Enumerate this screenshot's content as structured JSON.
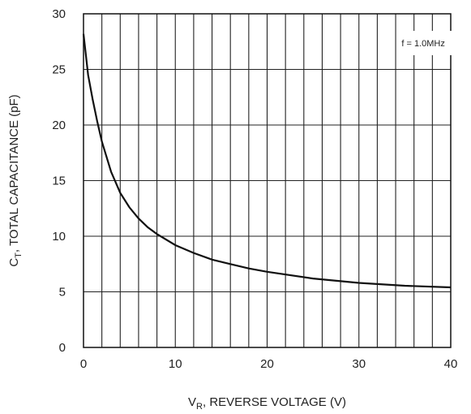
{
  "chart_data": {
    "type": "line",
    "xlabel_main": "V",
    "xlabel_sub": "R",
    "xlabel_rest": ", REVERSE VOLTAGE (V)",
    "ylabel_main": "C",
    "ylabel_sub": "T",
    "ylabel_rest": ", TOTAL CAPACITANCE (pF)",
    "annotation": "f = 1.0MHz",
    "xlim": [
      0,
      40
    ],
    "ylim": [
      0,
      30
    ],
    "x_ticks": [
      0,
      10,
      20,
      30,
      40
    ],
    "y_ticks": [
      0,
      5,
      10,
      15,
      20,
      25,
      30
    ],
    "x_tick_labels": [
      "0",
      "10",
      "20",
      "30",
      "40"
    ],
    "y_tick_labels": [
      "0",
      "5",
      "10",
      "15",
      "20",
      "25",
      "30"
    ],
    "grid": true,
    "legend": "none",
    "series": [
      {
        "x": [
          0,
          0.5,
          1,
          1.5,
          2,
          3,
          4,
          5,
          6,
          7,
          8,
          10,
          12,
          14,
          16,
          18,
          20,
          25,
          30,
          35,
          40
        ],
        "y": [
          28.2,
          24.5,
          22.3,
          20.3,
          18.5,
          15.8,
          13.9,
          12.6,
          11.6,
          10.8,
          10.2,
          9.2,
          8.5,
          7.9,
          7.5,
          7.1,
          6.8,
          6.2,
          5.8,
          5.55,
          5.4
        ]
      }
    ]
  }
}
